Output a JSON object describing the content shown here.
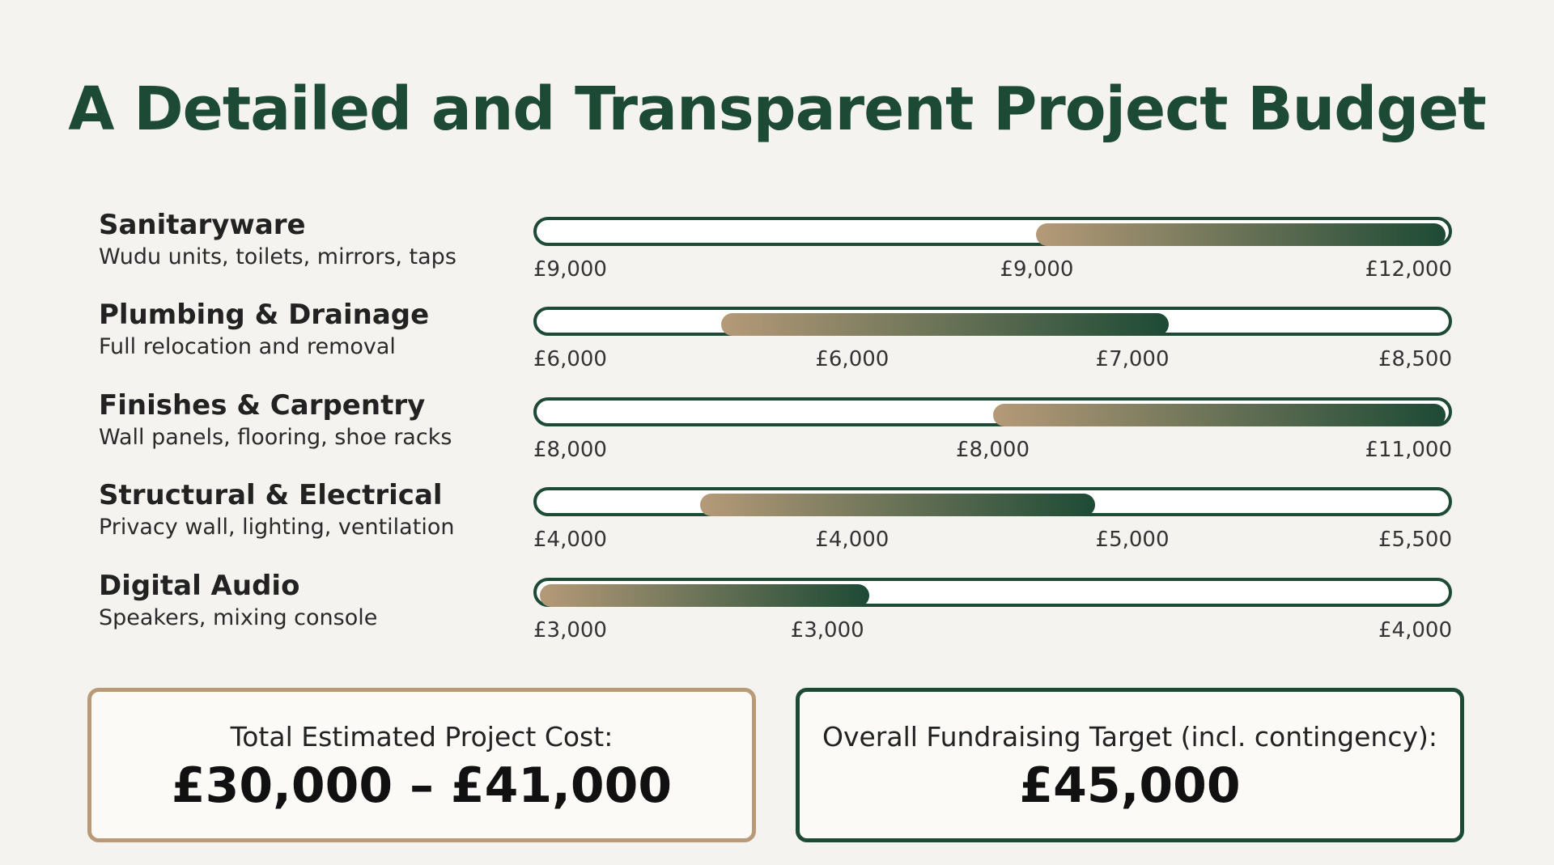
{
  "header": {
    "title": "A Detailed and Transparent Project Budget"
  },
  "rows": [
    {
      "name": "Sanitaryware",
      "description": "Wudu units, toilets, mirrors, taps",
      "labels": [
        "£9,000",
        "£9,000",
        "£12,000"
      ]
    },
    {
      "name": "Plumbing & Drainage",
      "description": "Full relocation and removal",
      "labels": [
        "£6,000",
        "£6,000",
        "£7,000",
        "£8,500"
      ]
    },
    {
      "name": "Finishes & Carpentry",
      "description": "Wall panels, flooring, shoe racks",
      "labels": [
        "£8,000",
        "£8,000",
        "£11,000"
      ]
    },
    {
      "name": "Structural & Electrical",
      "description": "Privacy wall, lighting, ventilation",
      "labels": [
        "£4,000",
        "£4,000",
        "£5,000",
        "£5,500"
      ]
    },
    {
      "name": "Digital Audio",
      "description": "Speakers, mixing console",
      "labels": [
        "£3,000",
        "£3,000",
        "£4,000"
      ]
    }
  ],
  "summary": [
    {
      "label": "Total Estimated Project Cost:",
      "amount": "£30,000 – £41,000"
    },
    {
      "label": "Overall Fundraising Target (incl. contingency):",
      "amount": "£45,000"
    }
  ]
}
